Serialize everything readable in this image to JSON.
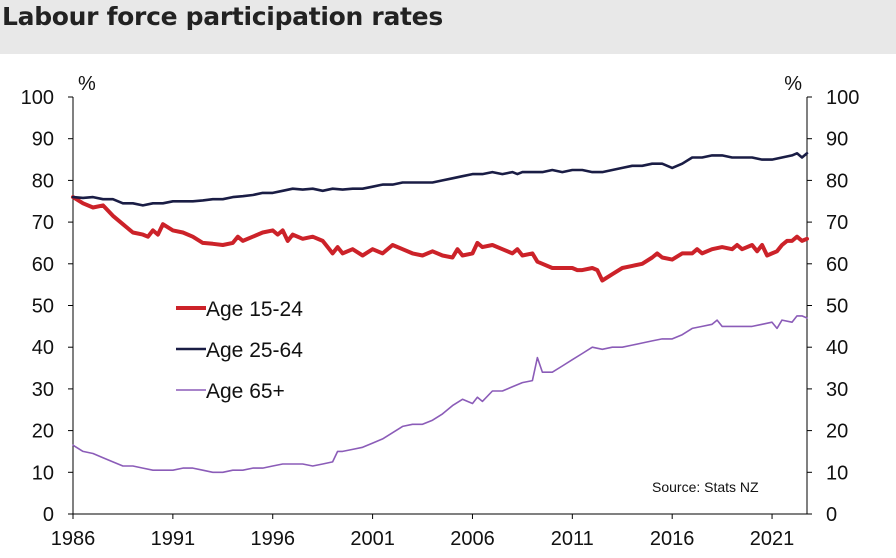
{
  "page": {
    "title": "Labour force participation rates"
  },
  "chart_data": {
    "type": "line",
    "title": "Labour force participation rates",
    "ylabel_left": "%",
    "ylabel_right": "%",
    "source": "Source: Stats NZ",
    "xlim": [
      1986,
      2022.75
    ],
    "ylim": [
      0,
      100
    ],
    "x_ticks": [
      1986,
      1991,
      1996,
      2001,
      2006,
      2011,
      2016,
      2021
    ],
    "y_ticks": [
      0,
      10,
      20,
      30,
      40,
      50,
      60,
      70,
      80,
      90,
      100
    ],
    "grid": false,
    "legend_position": "left-middle",
    "series": [
      {
        "name": "Age 15-24",
        "color": "#cc2229",
        "points": [
          [
            1986,
            76
          ],
          [
            1986.5,
            74.5
          ],
          [
            1987,
            73.5
          ],
          [
            1987.5,
            74
          ],
          [
            1988,
            71.5
          ],
          [
            1988.5,
            69.5
          ],
          [
            1989,
            67.5
          ],
          [
            1989.5,
            67
          ],
          [
            1989.75,
            66.5
          ],
          [
            1990,
            68
          ],
          [
            1990.25,
            67
          ],
          [
            1990.5,
            69.5
          ],
          [
            1991,
            68
          ],
          [
            1991.5,
            67.5
          ],
          [
            1992,
            66.5
          ],
          [
            1992.5,
            65
          ],
          [
            1993,
            64.8
          ],
          [
            1993.5,
            64.5
          ],
          [
            1994,
            65
          ],
          [
            1994.25,
            66.5
          ],
          [
            1994.5,
            65.5
          ],
          [
            1995,
            66.5
          ],
          [
            1995.5,
            67.5
          ],
          [
            1996,
            68
          ],
          [
            1996.25,
            67
          ],
          [
            1996.5,
            68
          ],
          [
            1996.75,
            65.5
          ],
          [
            1997,
            67
          ],
          [
            1997.5,
            66
          ],
          [
            1998,
            66.5
          ],
          [
            1998.5,
            65.5
          ],
          [
            1998.75,
            64
          ],
          [
            1999,
            62.5
          ],
          [
            1999.25,
            64
          ],
          [
            1999.5,
            62.5
          ],
          [
            2000,
            63.5
          ],
          [
            2000.5,
            62
          ],
          [
            2001,
            63.5
          ],
          [
            2001.5,
            62.5
          ],
          [
            2002,
            64.5
          ],
          [
            2002.5,
            63.5
          ],
          [
            2003,
            62.5
          ],
          [
            2003.5,
            62
          ],
          [
            2004,
            63
          ],
          [
            2004.5,
            62
          ],
          [
            2005,
            61.5
          ],
          [
            2005.25,
            63.5
          ],
          [
            2005.5,
            62
          ],
          [
            2006,
            62.5
          ],
          [
            2006.25,
            65
          ],
          [
            2006.5,
            64
          ],
          [
            2007,
            64.5
          ],
          [
            2007.5,
            63.5
          ],
          [
            2008,
            62.5
          ],
          [
            2008.25,
            63.5
          ],
          [
            2008.5,
            62
          ],
          [
            2009,
            62.5
          ],
          [
            2009.25,
            60.5
          ],
          [
            2009.5,
            60
          ],
          [
            2010,
            59
          ],
          [
            2010.5,
            59
          ],
          [
            2011,
            59
          ],
          [
            2011.25,
            58.5
          ],
          [
            2011.5,
            58.5
          ],
          [
            2012,
            59
          ],
          [
            2012.25,
            58.5
          ],
          [
            2012.5,
            56
          ],
          [
            2013,
            57.5
          ],
          [
            2013.5,
            59
          ],
          [
            2014,
            59.5
          ],
          [
            2014.5,
            60
          ],
          [
            2015,
            61.5
          ],
          [
            2015.25,
            62.5
          ],
          [
            2015.5,
            61.5
          ],
          [
            2016,
            61
          ],
          [
            2016.5,
            62.5
          ],
          [
            2017,
            62.5
          ],
          [
            2017.25,
            63.5
          ],
          [
            2017.5,
            62.5
          ],
          [
            2018,
            63.5
          ],
          [
            2018.5,
            64
          ],
          [
            2019,
            63.5
          ],
          [
            2019.25,
            64.5
          ],
          [
            2019.5,
            63.5
          ],
          [
            2020,
            64.5
          ],
          [
            2020.25,
            63
          ],
          [
            2020.5,
            64.5
          ],
          [
            2020.75,
            62
          ],
          [
            2021,
            62.5
          ],
          [
            2021.25,
            63
          ],
          [
            2021.5,
            64.5
          ],
          [
            2021.75,
            65.5
          ],
          [
            2022,
            65.5
          ],
          [
            2022.25,
            66.5
          ],
          [
            2022.5,
            65.5
          ],
          [
            2022.75,
            66
          ]
        ]
      },
      {
        "name": "Age 25-64",
        "color": "#1a1d45",
        "points": [
          [
            1986,
            76
          ],
          [
            1986.5,
            75.8
          ],
          [
            1987,
            76
          ],
          [
            1987.5,
            75.5
          ],
          [
            1988,
            75.5
          ],
          [
            1988.5,
            74.5
          ],
          [
            1989,
            74.5
          ],
          [
            1989.5,
            74
          ],
          [
            1990,
            74.5
          ],
          [
            1990.5,
            74.5
          ],
          [
            1991,
            75
          ],
          [
            1991.5,
            75
          ],
          [
            1992,
            75
          ],
          [
            1992.5,
            75.2
          ],
          [
            1993,
            75.5
          ],
          [
            1993.5,
            75.5
          ],
          [
            1994,
            76
          ],
          [
            1994.5,
            76.2
          ],
          [
            1995,
            76.5
          ],
          [
            1995.5,
            77
          ],
          [
            1996,
            77
          ],
          [
            1996.5,
            77.5
          ],
          [
            1997,
            78
          ],
          [
            1997.5,
            77.8
          ],
          [
            1998,
            78
          ],
          [
            1998.5,
            77.5
          ],
          [
            1999,
            78
          ],
          [
            1999.5,
            77.8
          ],
          [
            2000,
            78
          ],
          [
            2000.5,
            78
          ],
          [
            2001,
            78.5
          ],
          [
            2001.5,
            79
          ],
          [
            2002,
            79
          ],
          [
            2002.5,
            79.5
          ],
          [
            2003,
            79.5
          ],
          [
            2003.5,
            79.5
          ],
          [
            2004,
            79.5
          ],
          [
            2004.5,
            80
          ],
          [
            2005,
            80.5
          ],
          [
            2005.5,
            81
          ],
          [
            2006,
            81.5
          ],
          [
            2006.5,
            81.5
          ],
          [
            2007,
            82
          ],
          [
            2007.5,
            81.5
          ],
          [
            2008,
            82
          ],
          [
            2008.25,
            81.5
          ],
          [
            2008.5,
            82
          ],
          [
            2009,
            82
          ],
          [
            2009.5,
            82
          ],
          [
            2010,
            82.5
          ],
          [
            2010.5,
            82
          ],
          [
            2011,
            82.5
          ],
          [
            2011.5,
            82.5
          ],
          [
            2012,
            82
          ],
          [
            2012.5,
            82
          ],
          [
            2013,
            82.5
          ],
          [
            2013.5,
            83
          ],
          [
            2014,
            83.5
          ],
          [
            2014.5,
            83.5
          ],
          [
            2015,
            84
          ],
          [
            2015.5,
            84
          ],
          [
            2016,
            83
          ],
          [
            2016.5,
            84
          ],
          [
            2017,
            85.5
          ],
          [
            2017.5,
            85.5
          ],
          [
            2018,
            86
          ],
          [
            2018.5,
            86
          ],
          [
            2019,
            85.5
          ],
          [
            2019.5,
            85.5
          ],
          [
            2020,
            85.5
          ],
          [
            2020.5,
            85
          ],
          [
            2021,
            85
          ],
          [
            2021.5,
            85.5
          ],
          [
            2022,
            86
          ],
          [
            2022.25,
            86.5
          ],
          [
            2022.5,
            85.5
          ],
          [
            2022.75,
            86.5
          ]
        ]
      },
      {
        "name": "Age 65+",
        "color": "#8b5cb8",
        "points": [
          [
            1986,
            16.5
          ],
          [
            1986.5,
            15
          ],
          [
            1987,
            14.5
          ],
          [
            1987.5,
            13.5
          ],
          [
            1988,
            12.5
          ],
          [
            1988.5,
            11.5
          ],
          [
            1989,
            11.5
          ],
          [
            1989.5,
            11
          ],
          [
            1990,
            10.5
          ],
          [
            1990.5,
            10.5
          ],
          [
            1991,
            10.5
          ],
          [
            1991.5,
            11
          ],
          [
            1992,
            11
          ],
          [
            1992.5,
            10.5
          ],
          [
            1993,
            10
          ],
          [
            1993.5,
            10
          ],
          [
            1994,
            10.5
          ],
          [
            1994.5,
            10.5
          ],
          [
            1995,
            11
          ],
          [
            1995.5,
            11
          ],
          [
            1996,
            11.5
          ],
          [
            1996.5,
            12
          ],
          [
            1997,
            12
          ],
          [
            1997.5,
            12
          ],
          [
            1998,
            11.5
          ],
          [
            1998.5,
            12
          ],
          [
            1999,
            12.5
          ],
          [
            1999.25,
            15
          ],
          [
            1999.5,
            15
          ],
          [
            2000,
            15.5
          ],
          [
            2000.5,
            16
          ],
          [
            2001,
            17
          ],
          [
            2001.5,
            18
          ],
          [
            2002,
            19.5
          ],
          [
            2002.5,
            21
          ],
          [
            2003,
            21.5
          ],
          [
            2003.5,
            21.5
          ],
          [
            2004,
            22.5
          ],
          [
            2004.5,
            24
          ],
          [
            2005,
            26
          ],
          [
            2005.5,
            27.5
          ],
          [
            2006,
            26.5
          ],
          [
            2006.25,
            28
          ],
          [
            2006.5,
            27
          ],
          [
            2007,
            29.5
          ],
          [
            2007.5,
            29.5
          ],
          [
            2008,
            30.5
          ],
          [
            2008.5,
            31.5
          ],
          [
            2009,
            32
          ],
          [
            2009.25,
            37.5
          ],
          [
            2009.5,
            34
          ],
          [
            2010,
            34
          ],
          [
            2010.5,
            35.5
          ],
          [
            2011,
            37
          ],
          [
            2011.5,
            38.5
          ],
          [
            2012,
            40
          ],
          [
            2012.5,
            39.5
          ],
          [
            2013,
            40
          ],
          [
            2013.5,
            40
          ],
          [
            2014,
            40.5
          ],
          [
            2014.5,
            41
          ],
          [
            2015,
            41.5
          ],
          [
            2015.5,
            42
          ],
          [
            2016,
            42
          ],
          [
            2016.5,
            43
          ],
          [
            2017,
            44.5
          ],
          [
            2017.5,
            45
          ],
          [
            2018,
            45.5
          ],
          [
            2018.25,
            46.5
          ],
          [
            2018.5,
            45
          ],
          [
            2019,
            45
          ],
          [
            2019.5,
            45
          ],
          [
            2020,
            45
          ],
          [
            2020.5,
            45.5
          ],
          [
            2021,
            46
          ],
          [
            2021.25,
            44.5
          ],
          [
            2021.5,
            46.5
          ],
          [
            2022,
            46
          ],
          [
            2022.25,
            47.5
          ],
          [
            2022.5,
            47.5
          ],
          [
            2022.75,
            47
          ]
        ]
      }
    ]
  }
}
